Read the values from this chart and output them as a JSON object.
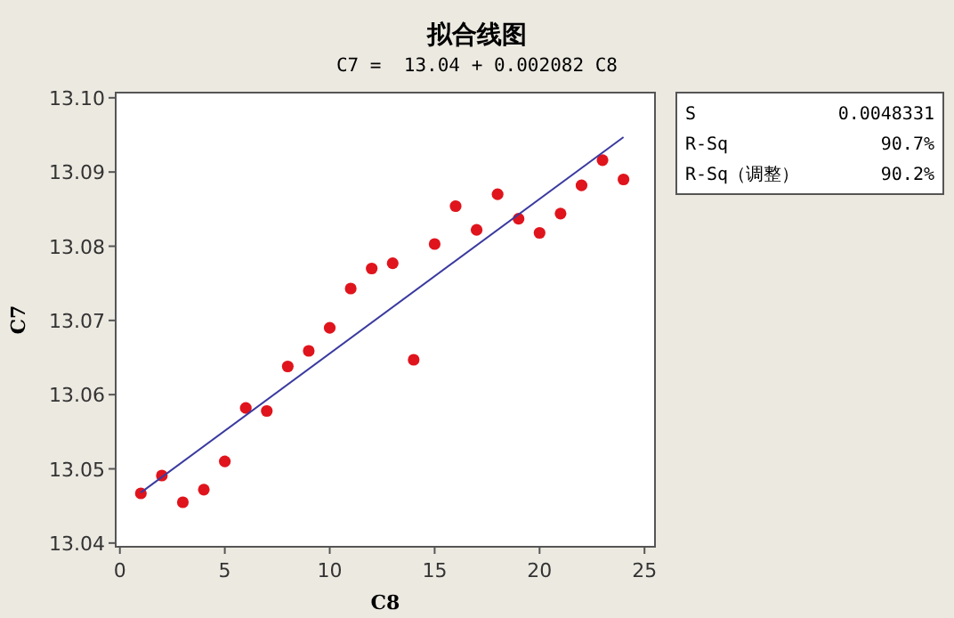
{
  "chart_data": {
    "type": "scatter",
    "title": "拟合线图",
    "subtitle": "C7 =  13.04 + 0.002082 C8",
    "xlabel": "C8",
    "ylabel": "C7",
    "xlim": [
      -0.2,
      25.5
    ],
    "xticks": [
      0,
      5,
      10,
      15,
      20,
      25
    ],
    "ylim": [
      13.0395,
      13.1007
    ],
    "yticks": [
      {
        "value": 13.04,
        "label": "13.04"
      },
      {
        "value": 13.05,
        "label": "13.05"
      },
      {
        "value": 13.06,
        "label": "13.06"
      },
      {
        "value": 13.07,
        "label": "13.07"
      },
      {
        "value": 13.08,
        "label": "13.08"
      },
      {
        "value": 13.09,
        "label": "13.09"
      },
      {
        "value": 13.1,
        "label": "13.10"
      }
    ],
    "grid": false,
    "marker": "circle",
    "series": [
      {
        "color": "#e0141c",
        "x": [
          1,
          2,
          3,
          4,
          5,
          6,
          7,
          8,
          9,
          10,
          11,
          12,
          13,
          14,
          15,
          16,
          17,
          18,
          19,
          20,
          21,
          22,
          23,
          24
        ],
        "values": [
          13.0467,
          13.0491,
          13.0455,
          13.0472,
          13.051,
          13.0582,
          13.0578,
          13.0638,
          13.0659,
          13.069,
          13.0743,
          13.077,
          13.0777,
          13.0647,
          13.0803,
          13.0854,
          13.0822,
          13.087,
          13.0837,
          13.0818,
          13.0844,
          13.0882,
          13.0916,
          13.089
        ]
      },
      {
        "type": "line",
        "color": "#3a3aa0",
        "line_style": "solid",
        "marker": "none",
        "x": [
          1,
          24
        ],
        "values": [
          13.0468,
          13.0947
        ]
      }
    ],
    "annotations": [
      "S",
      "0.0048331",
      "R-Sq",
      "90.7%",
      "R-Sq（调整）",
      "90.2%"
    ]
  }
}
